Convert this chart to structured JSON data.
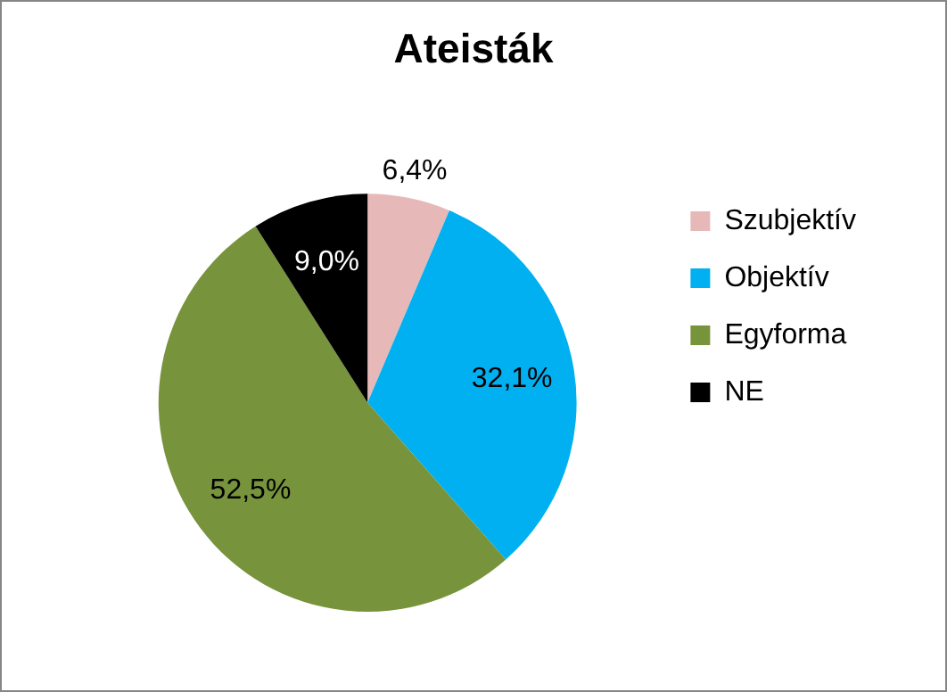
{
  "chart_data": {
    "type": "pie",
    "title": "Ateisták",
    "categories": [
      "Szubjektív",
      "Objektív",
      "Egyforma",
      "NE"
    ],
    "values": [
      6.4,
      32.1,
      52.5,
      9.0
    ],
    "value_labels": [
      "6,4%",
      "32,1%",
      "52,5%",
      "9,0%"
    ],
    "colors": [
      "#e6b9b8",
      "#00b0f0",
      "#77933c",
      "#000000"
    ],
    "legend": "right"
  }
}
